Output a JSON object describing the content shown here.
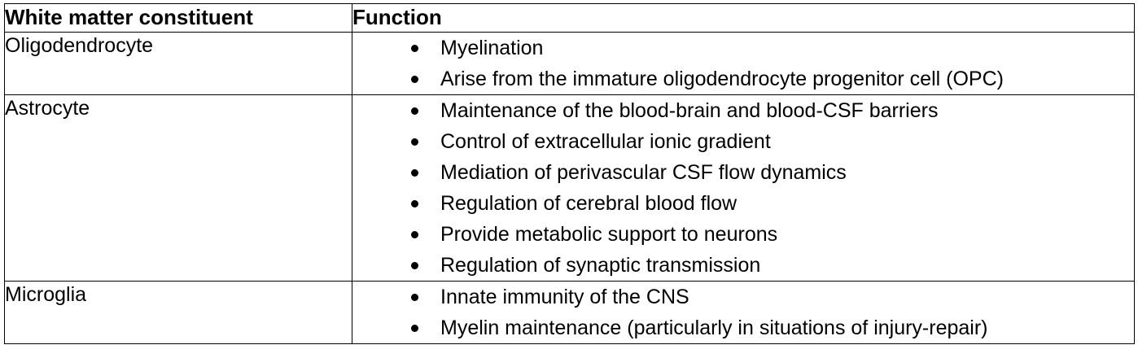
{
  "table": {
    "headers": [
      "White matter constituent",
      "Function"
    ],
    "rows": [
      {
        "constituent": "Oligodendrocyte",
        "functions": [
          "Myelination",
          "Arise from the immature oligodendrocyte progenitor cell (OPC)"
        ]
      },
      {
        "constituent": "Astrocyte",
        "functions": [
          "Maintenance of the blood-brain and blood-CSF barriers",
          "Control of extracellular ionic gradient",
          "Mediation of perivascular CSF flow dynamics",
          "Regulation of cerebral blood flow",
          "Provide metabolic support to neurons",
          "Regulation of synaptic transmission"
        ]
      },
      {
        "constituent": "Microglia",
        "functions": [
          "Innate immunity of the CNS",
          "Myelin maintenance (particularly in situations of injury-repair)"
        ]
      }
    ]
  }
}
